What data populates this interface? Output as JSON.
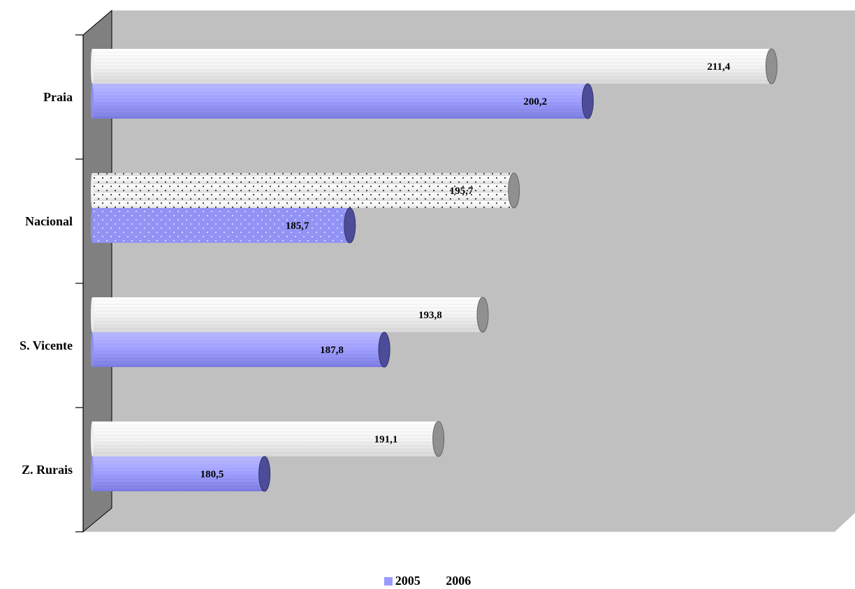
{
  "chart_data": {
    "type": "bar",
    "orientation": "horizontal",
    "style": "3d-cylinder",
    "categories": [
      "Praia",
      "Nacional",
      "S. Vicente",
      "Z. Rurais"
    ],
    "series": [
      {
        "name": "2005",
        "values": [
          200.2,
          185.7,
          187.8,
          180.5
        ],
        "color": "#9999ff"
      },
      {
        "name": "2006",
        "values": [
          211.4,
          195.7,
          193.8,
          191.1
        ],
        "color": "#ffffff"
      }
    ],
    "value_labels": {
      "2005": [
        "200,2",
        "185,7",
        "187,8",
        "180,5"
      ],
      "2006": [
        "211,4",
        "195,7",
        "193,8",
        "191,1"
      ]
    },
    "highlighted_category": "Nacional",
    "xlim": [
      170,
      213
    ],
    "grid": false,
    "legend_position": "bottom",
    "wall_color": "#c0c0c0",
    "side_wall_color": "#808080"
  }
}
